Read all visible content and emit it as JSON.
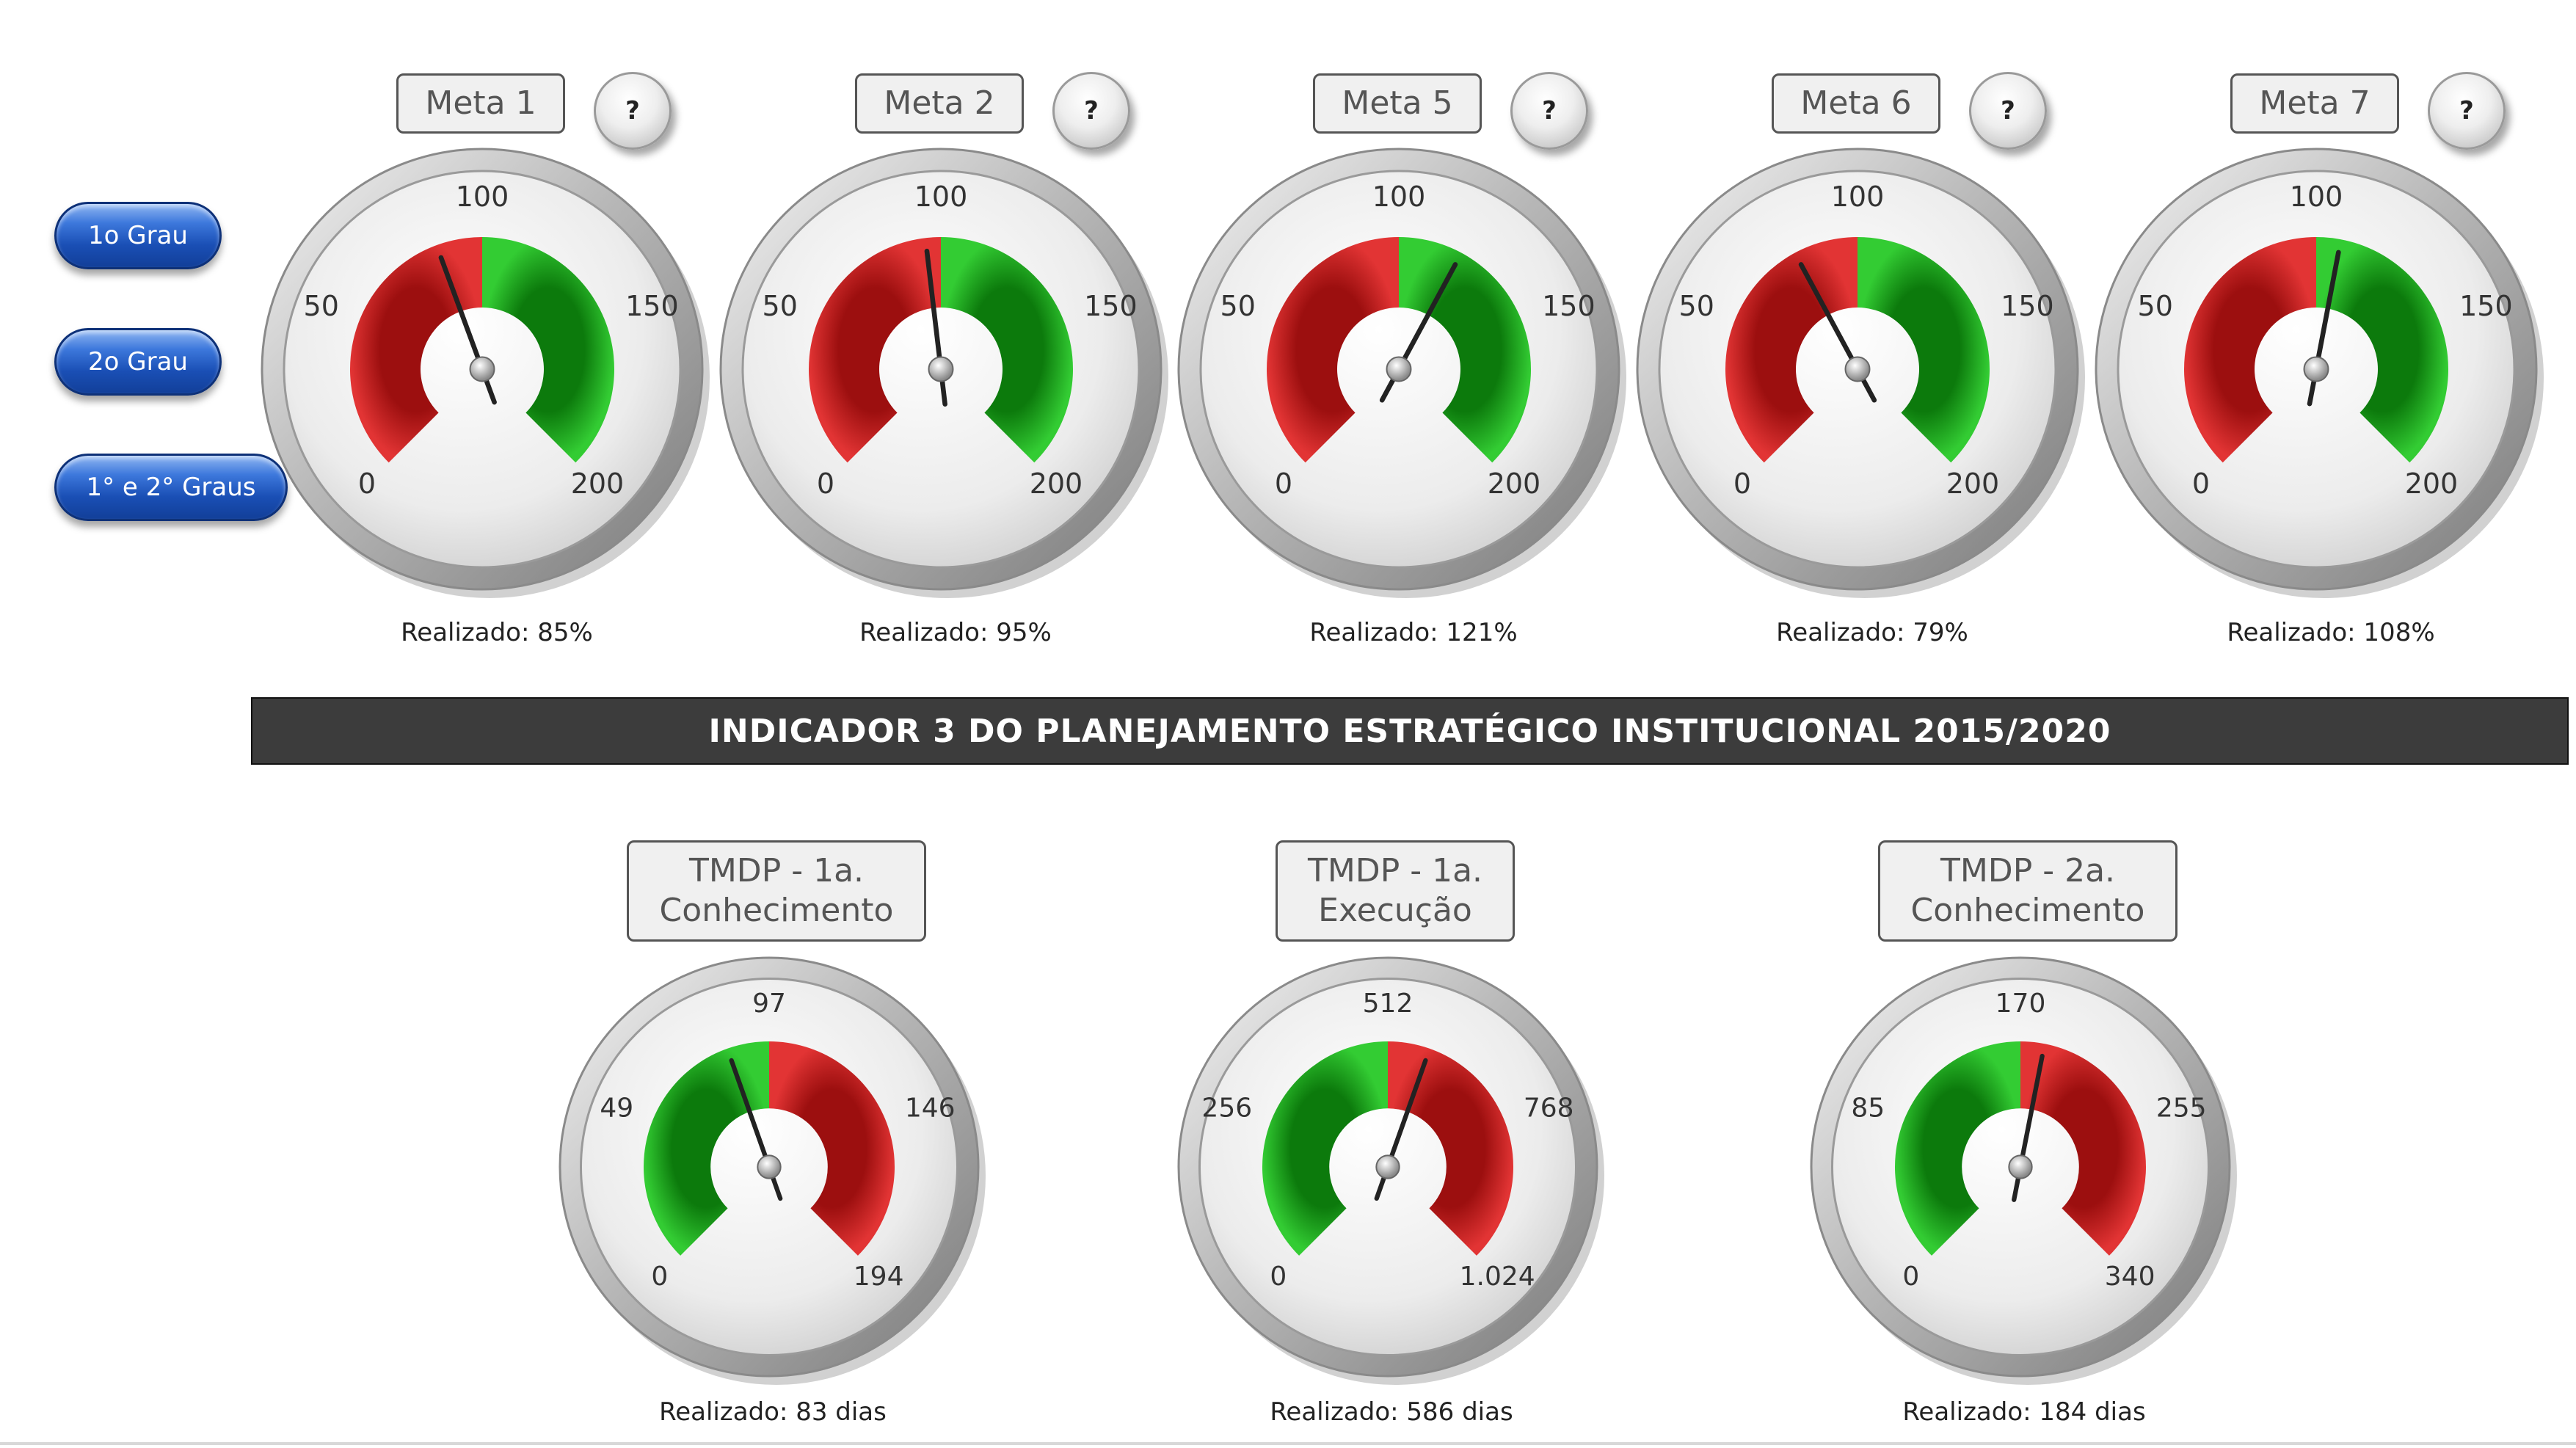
{
  "side_buttons": [
    "1o Grau",
    "2o Grau",
    "1° e 2° Graus"
  ],
  "help_label": "?",
  "banner": "INDICADOR 3  DO PLANEJAMENTO ESTRATÉGICO INSTITUCIONAL 2015/2020",
  "colors": {
    "red": "#d42a2a",
    "green": "#1fa81f",
    "banner_bg": "#3c3c3c",
    "button_blue": "#1a4fb5"
  },
  "metas": [
    {
      "title": "Meta 1",
      "ticks": [
        "0",
        "50",
        "100",
        "150",
        "200"
      ],
      "min": 0,
      "max": 200,
      "threshold": 100,
      "value": 85,
      "realizado": "Realizado: 85%"
    },
    {
      "title": "Meta 2",
      "ticks": [
        "0",
        "50",
        "100",
        "150",
        "200"
      ],
      "min": 0,
      "max": 200,
      "threshold": 100,
      "value": 95,
      "realizado": "Realizado: 95%"
    },
    {
      "title": "Meta 5",
      "ticks": [
        "0",
        "50",
        "100",
        "150",
        "200"
      ],
      "min": 0,
      "max": 200,
      "threshold": 100,
      "value": 121,
      "realizado": "Realizado: 121%"
    },
    {
      "title": "Meta 6",
      "ticks": [
        "0",
        "50",
        "100",
        "150",
        "200"
      ],
      "min": 0,
      "max": 200,
      "threshold": 100,
      "value": 79,
      "realizado": "Realizado: 79%"
    },
    {
      "title": "Meta 7",
      "ticks": [
        "0",
        "50",
        "100",
        "150",
        "200"
      ],
      "min": 0,
      "max": 200,
      "threshold": 100,
      "value": 108,
      "realizado": "Realizado: 108%"
    }
  ],
  "tmdp": [
    {
      "title_lines": [
        "TMDP - 1a.",
        "Conhecimento"
      ],
      "ticks": [
        "0",
        "49",
        "97",
        "146",
        "194"
      ],
      "min": 0,
      "max": 194,
      "threshold": 97,
      "value": 83,
      "realizado": "Realizado: 83 dias"
    },
    {
      "title_lines": [
        "TMDP - 1a.",
        "Execução"
      ],
      "ticks": [
        "0",
        "256",
        "512",
        "768",
        "1.024"
      ],
      "min": 0,
      "max": 1024,
      "threshold": 512,
      "value": 586,
      "realizado": "Realizado: 586 dias"
    },
    {
      "title_lines": [
        "TMDP - 2a.",
        "Conhecimento"
      ],
      "ticks": [
        "0",
        "85",
        "170",
        "255",
        "340"
      ],
      "min": 0,
      "max": 340,
      "threshold": 170,
      "value": 184,
      "realizado": "Realizado: 184 dias"
    }
  ]
}
